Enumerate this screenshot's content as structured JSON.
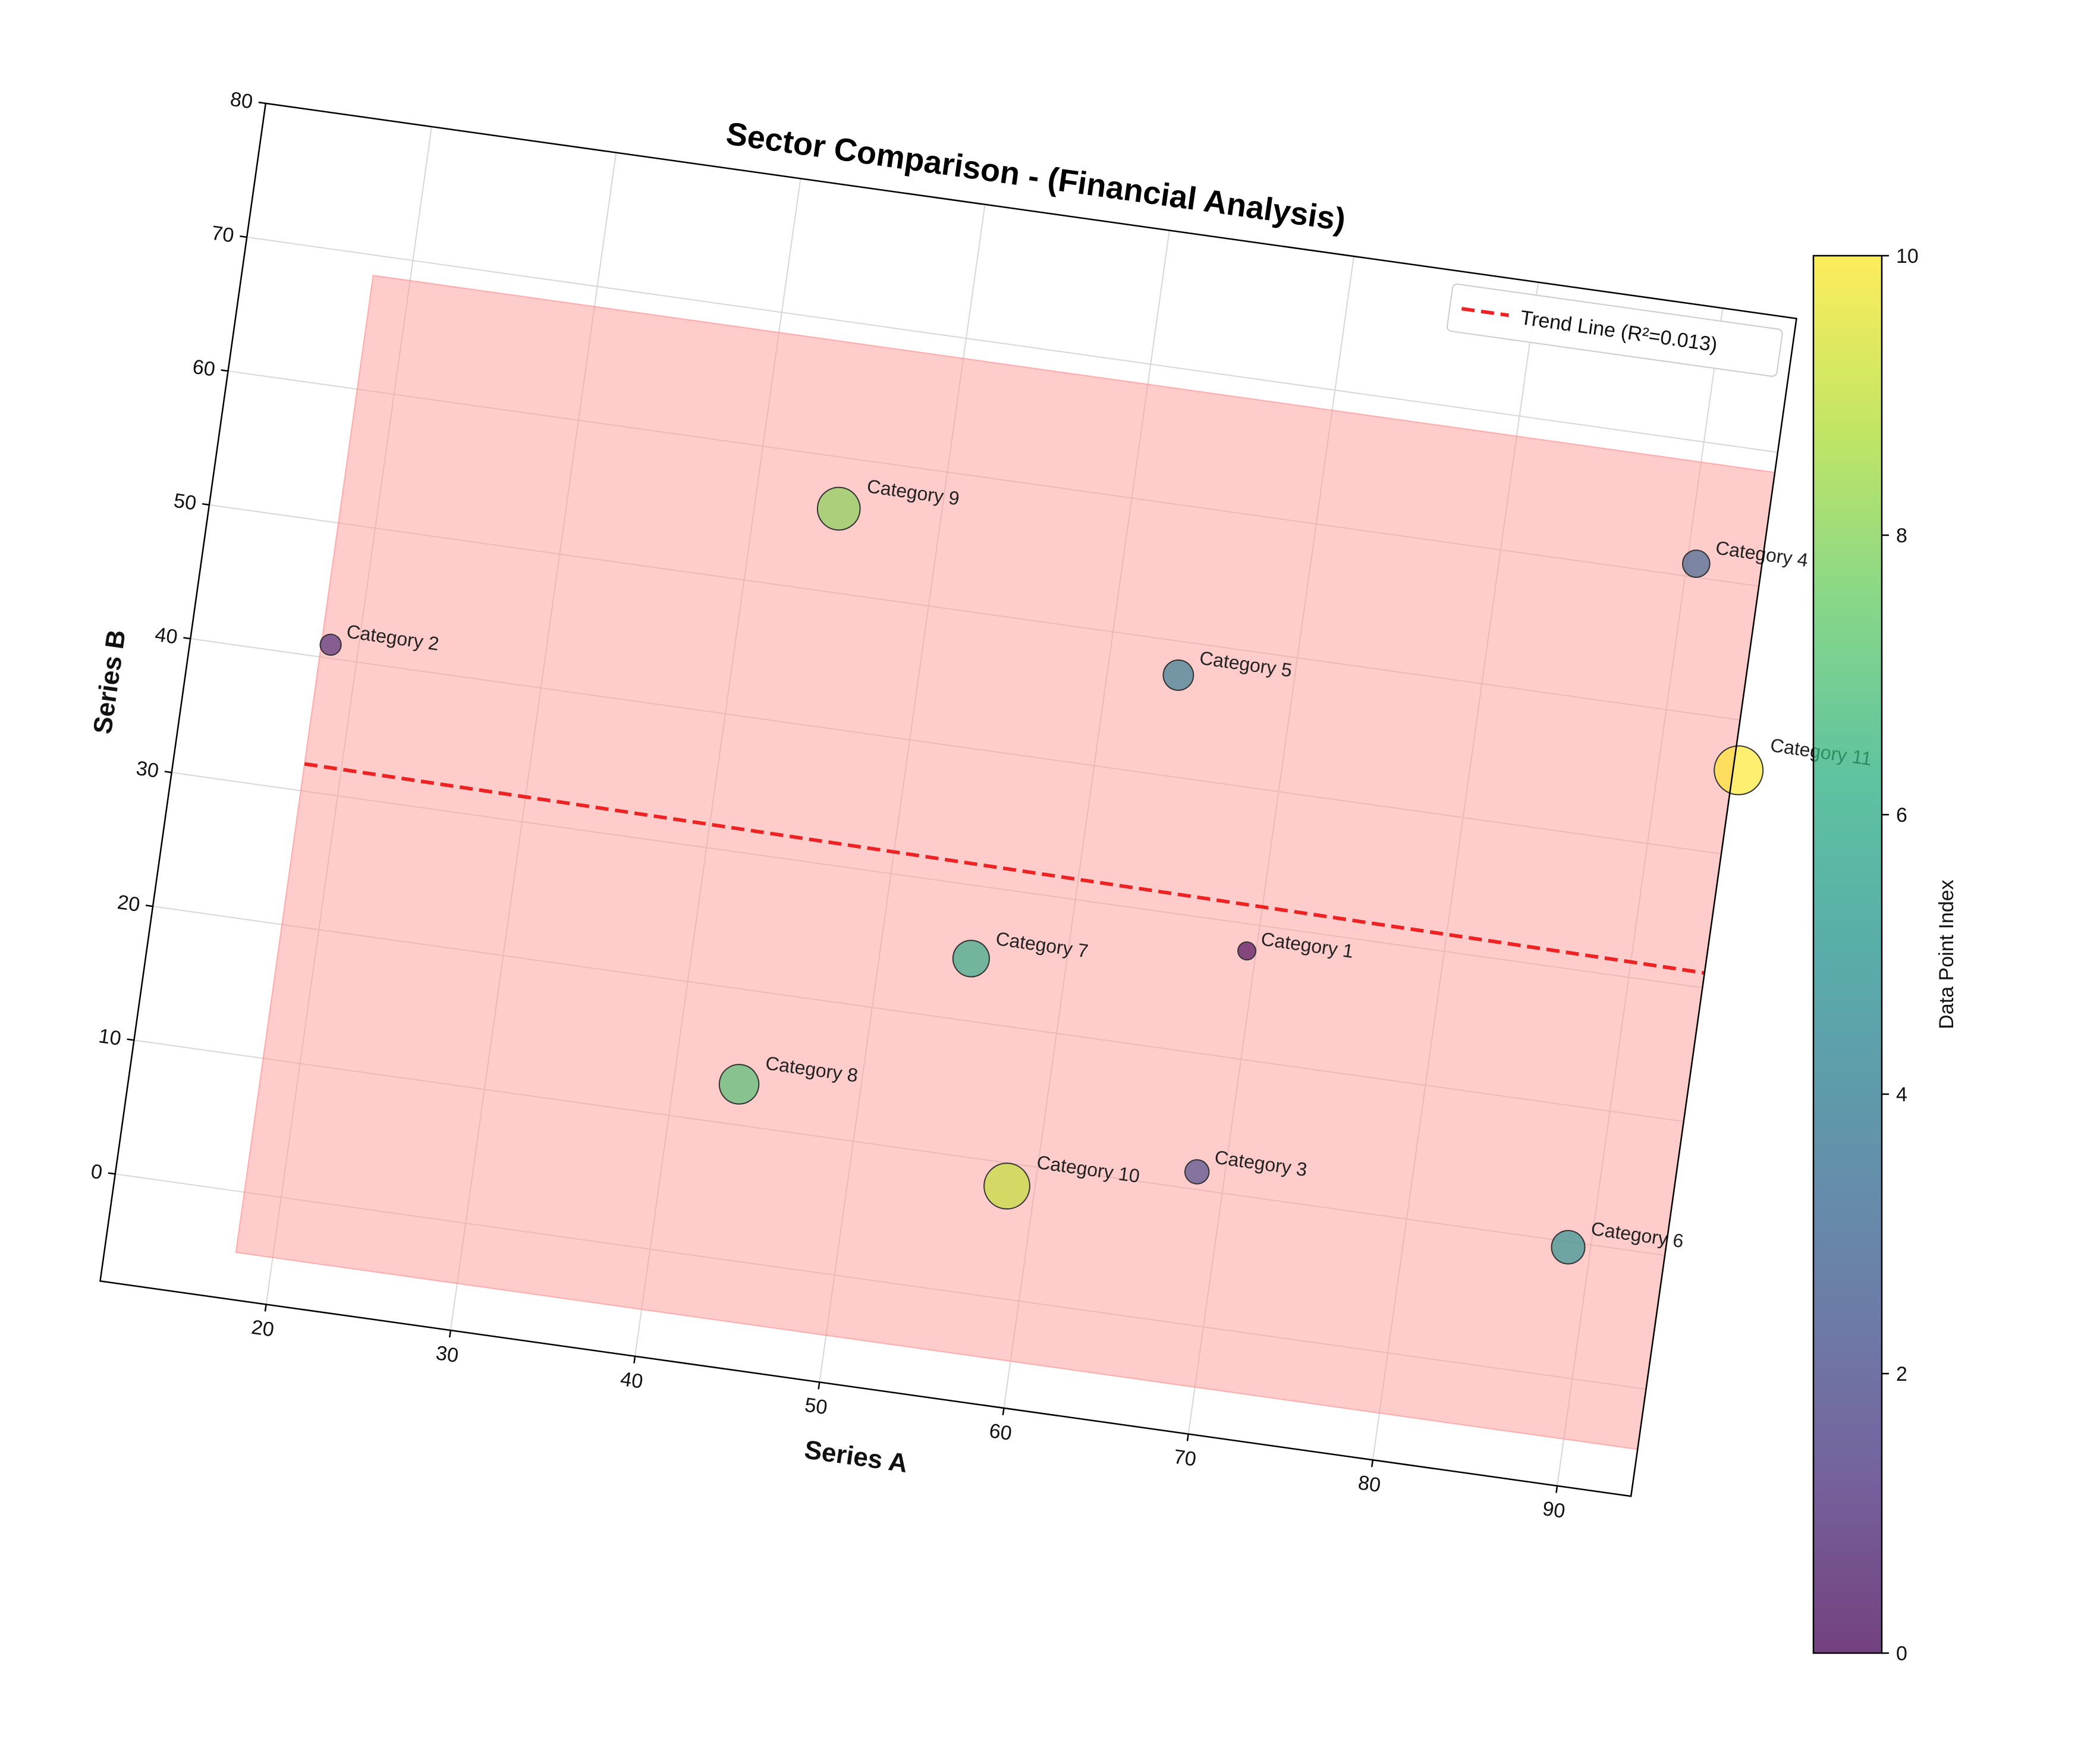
{
  "chart_data": {
    "type": "scatter",
    "title": "Sector Comparison - (Financial Analysis)",
    "xlabel": "Series A",
    "ylabel": "Series B",
    "xlim": [
      11,
      94
    ],
    "ylim": [
      -8,
      80
    ],
    "xticks": [
      20,
      30,
      40,
      50,
      60,
      70,
      80,
      90
    ],
    "yticks": [
      0,
      10,
      20,
      30,
      40,
      50,
      60,
      70,
      80
    ],
    "grid": true,
    "rotation_degrees": -8,
    "points": [
      {
        "label": "Category 1",
        "x": 69.5,
        "y": 28.0,
        "index": 0
      },
      {
        "label": "Category 2",
        "x": 18.5,
        "y": 41.0,
        "index": 1
      },
      {
        "label": "Category 3",
        "x": 68.5,
        "y": 11.3,
        "index": 2
      },
      {
        "label": "Category 4",
        "x": 90.5,
        "y": 61.0,
        "index": 3
      },
      {
        "label": "Category 5",
        "x": 63.8,
        "y": 47.5,
        "index": 4
      },
      {
        "label": "Category 6",
        "x": 88.8,
        "y": 9.6,
        "index": 5
      },
      {
        "label": "Category 7",
        "x": 54.9,
        "y": 24.6,
        "index": 6
      },
      {
        "label": "Category 8",
        "x": 43.5,
        "y": 13.0,
        "index": 7
      },
      {
        "label": "Category 9",
        "x": 44.5,
        "y": 56.2,
        "index": 8
      },
      {
        "label": "Category 10",
        "x": 58.5,
        "y": 8.3,
        "index": 9
      },
      {
        "label": "Category 11",
        "x": 94.3,
        "y": 46.3,
        "index": 10
      }
    ],
    "trend_line": {
      "label": "Trend Line (R²=0.013)",
      "x": [
        18,
        94
      ],
      "y": [
        32.0,
        31.1
      ],
      "color": "#ee2222"
    },
    "band": {
      "x": [
        18,
        94
      ],
      "upper": 68.5,
      "lower": -4.5,
      "color": "#ff9999"
    },
    "legend_position": "upper right",
    "colorbar": {
      "label": "Data Point Index",
      "min": 0,
      "max": 10,
      "ticks": [
        0,
        2,
        4,
        6,
        8,
        10
      ],
      "colormap": "viridis"
    }
  }
}
